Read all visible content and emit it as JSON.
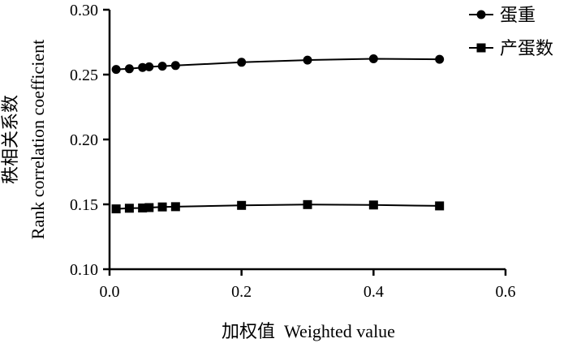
{
  "chart_data": {
    "type": "line",
    "title": "",
    "xlabel": "加权值  Weighted value",
    "ylabel": [
      "秩相关系数",
      "Rank correlation coefficient"
    ],
    "xlim": [
      0.0,
      0.6
    ],
    "ylim": [
      0.1,
      0.3
    ],
    "xticks": [
      "0.0",
      "0.2",
      "0.4",
      "0.6"
    ],
    "yticks": [
      "0.10",
      "0.15",
      "0.20",
      "0.25",
      "0.30"
    ],
    "grid": false,
    "legend_position": "top-right",
    "x": [
      0.01,
      0.03,
      0.05,
      0.06,
      0.08,
      0.1,
      0.2,
      0.3,
      0.4,
      0.5
    ],
    "series": [
      {
        "name": "蛋重",
        "marker": "circle",
        "values": [
          0.254,
          0.2545,
          0.2555,
          0.256,
          0.2565,
          0.257,
          0.2595,
          0.2612,
          0.2622,
          0.2618
        ]
      },
      {
        "name": "产蛋数",
        "marker": "square",
        "values": [
          0.1465,
          0.147,
          0.1472,
          0.1475,
          0.148,
          0.1482,
          0.1492,
          0.1498,
          0.1495,
          0.1488
        ]
      }
    ],
    "color": "#000000"
  }
}
